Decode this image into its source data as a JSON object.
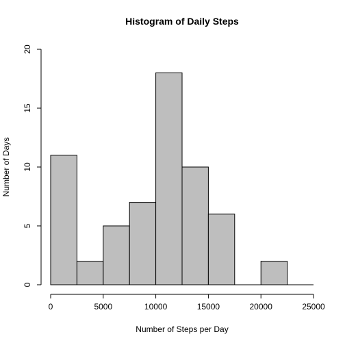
{
  "chart_data": {
    "type": "bar",
    "title": "Histogram of Daily Steps",
    "xlabel": "Number of Steps per Day",
    "ylabel": "Number of Days",
    "xlim": [
      0,
      25000
    ],
    "ylim": [
      0,
      20
    ],
    "x_ticks": [
      "0",
      "5000",
      "10000",
      "15000",
      "20000",
      "25000"
    ],
    "y_ticks": [
      "0",
      "5",
      "10",
      "15",
      "20"
    ],
    "bins": [
      {
        "x0": 0,
        "x1": 2500,
        "count": 11
      },
      {
        "x0": 2500,
        "x1": 5000,
        "count": 2
      },
      {
        "x0": 5000,
        "x1": 7500,
        "count": 5
      },
      {
        "x0": 7500,
        "x1": 10000,
        "count": 7
      },
      {
        "x0": 10000,
        "x1": 12500,
        "count": 18
      },
      {
        "x0": 12500,
        "x1": 15000,
        "count": 10
      },
      {
        "x0": 15000,
        "x1": 17500,
        "count": 6
      },
      {
        "x0": 17500,
        "x1": 20000,
        "count": 0
      },
      {
        "x0": 20000,
        "x1": 22500,
        "count": 2
      },
      {
        "x0": 22500,
        "x1": 25000,
        "count": 0
      }
    ],
    "bar_color": "#bebebe",
    "grid": false,
    "legend": "none"
  }
}
